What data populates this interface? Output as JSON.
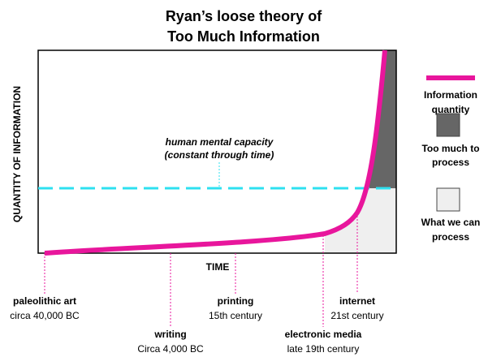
{
  "header": {
    "title": [
      "Ryan’s loose theory of",
      "Too Much Information"
    ]
  },
  "axes": {
    "x": "TIME",
    "y": "QUANTITY OF INFORMATION"
  },
  "annotation": [
    "human mental capacity",
    "(constant through time)"
  ],
  "milestones": [
    {
      "name": "paleolithic art",
      "date": "circa 40,000 BC"
    },
    {
      "name": "writing",
      "date": "Circa 4,000 BC"
    },
    {
      "name": "printing",
      "date": "15th century"
    },
    {
      "name": "electronic media",
      "date": "late 19th century"
    },
    {
      "name": "internet",
      "date": "21st century"
    }
  ],
  "legend": [
    [
      "Information",
      "quantity"
    ],
    [
      "Too much to",
      "process"
    ],
    [
      "What we can",
      "process"
    ]
  ]
}
